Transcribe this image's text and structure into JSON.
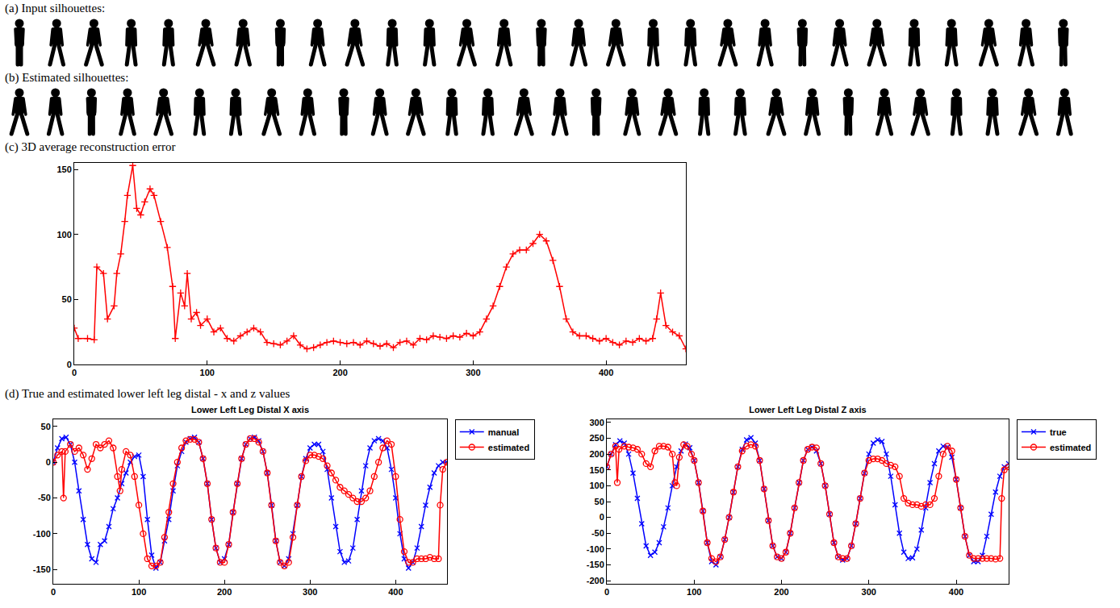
{
  "labels": {
    "a": "(a) Input silhouettes:",
    "b": "(b) Estimated silhouettes:",
    "c": "(c) 3D average reconstruction error",
    "d": "(d) True and estimated lower left leg distal - x and z values"
  },
  "silhouette_counts": {
    "a": 29,
    "b": 30
  },
  "chart_data": [
    {
      "type": "line",
      "xlim": [
        0,
        460
      ],
      "xticks": [
        0,
        100,
        200,
        300,
        400
      ],
      "ylim": [
        0,
        155
      ],
      "yticks": [
        0,
        50,
        100,
        150
      ],
      "grid": false,
      "series": [
        {
          "color": "#ff0000",
          "marker": "plus",
          "x": [
            0,
            3,
            10,
            15,
            17,
            22,
            25,
            30,
            32,
            35,
            38,
            40,
            44,
            47,
            50,
            53,
            57,
            60,
            65,
            70,
            74,
            76,
            80,
            83,
            85,
            88,
            92,
            95,
            100,
            105,
            110,
            115,
            120,
            125,
            130,
            135,
            140,
            145,
            150,
            155,
            160,
            165,
            170,
            175,
            180,
            185,
            190,
            195,
            200,
            205,
            210,
            215,
            220,
            225,
            230,
            235,
            240,
            245,
            250,
            255,
            260,
            265,
            270,
            275,
            280,
            285,
            290,
            295,
            300,
            305,
            310,
            315,
            320,
            325,
            330,
            335,
            340,
            345,
            350,
            355,
            360,
            365,
            370,
            375,
            380,
            385,
            390,
            395,
            400,
            405,
            410,
            415,
            420,
            425,
            430,
            435,
            438,
            441,
            445,
            450,
            455,
            460
          ],
          "values": [
            28,
            20,
            20,
            19,
            75,
            70,
            35,
            45,
            70,
            85,
            110,
            130,
            153,
            120,
            115,
            125,
            135,
            130,
            110,
            90,
            60,
            20,
            55,
            45,
            70,
            35,
            40,
            30,
            35,
            25,
            28,
            20,
            18,
            22,
            25,
            28,
            25,
            17,
            16,
            15,
            18,
            22,
            15,
            12,
            13,
            15,
            17,
            18,
            17,
            16,
            17,
            15,
            18,
            16,
            14,
            16,
            13,
            17,
            18,
            15,
            20,
            19,
            22,
            21,
            20,
            22,
            21,
            24,
            22,
            25,
            35,
            45,
            60,
            75,
            85,
            88,
            88,
            93,
            100,
            95,
            80,
            60,
            35,
            25,
            22,
            22,
            20,
            18,
            20,
            17,
            15,
            18,
            17,
            20,
            18,
            20,
            35,
            55,
            30,
            25,
            22,
            12
          ]
        }
      ]
    },
    {
      "type": "line",
      "title": "Lower Left Leg Distal X axis",
      "xlim": [
        0,
        460
      ],
      "xticks": [
        0,
        100,
        200,
        300,
        400
      ],
      "ylim": [
        -170,
        60
      ],
      "yticks": [
        -150,
        -100,
        -50,
        0,
        50
      ],
      "grid": false,
      "legend": "right",
      "series": [
        {
          "name": "manual",
          "color": "#0000ff",
          "marker": "x",
          "x": [
            0,
            5,
            10,
            15,
            20,
            25,
            30,
            35,
            40,
            45,
            50,
            55,
            60,
            65,
            70,
            75,
            80,
            85,
            90,
            95,
            100,
            105,
            110,
            115,
            120,
            125,
            130,
            135,
            140,
            145,
            150,
            155,
            160,
            165,
            170,
            175,
            180,
            185,
            190,
            195,
            200,
            205,
            210,
            215,
            220,
            225,
            230,
            235,
            240,
            245,
            250,
            255,
            260,
            265,
            270,
            275,
            280,
            285,
            290,
            295,
            300,
            305,
            310,
            315,
            320,
            325,
            330,
            335,
            340,
            345,
            350,
            355,
            360,
            365,
            370,
            375,
            380,
            385,
            390,
            395,
            400,
            405,
            410,
            415,
            420,
            425,
            430,
            435,
            440,
            445,
            450,
            455,
            460
          ],
          "values": [
            0,
            20,
            33,
            35,
            25,
            0,
            -40,
            -80,
            -115,
            -135,
            -140,
            -115,
            -110,
            -90,
            -65,
            -50,
            -30,
            -15,
            0,
            8,
            10,
            -20,
            -80,
            -130,
            -148,
            -140,
            -110,
            -80,
            -40,
            -5,
            15,
            28,
            33,
            35,
            28,
            5,
            -30,
            -80,
            -120,
            -140,
            -135,
            -115,
            -70,
            -30,
            5,
            25,
            33,
            35,
            30,
            15,
            -15,
            -60,
            -110,
            -140,
            -145,
            -135,
            -100,
            -60,
            -20,
            5,
            20,
            25,
            25,
            15,
            -10,
            -50,
            -90,
            -125,
            -140,
            -138,
            -120,
            -80,
            -40,
            -5,
            20,
            30,
            33,
            30,
            20,
            -10,
            -50,
            -100,
            -135,
            -148,
            -140,
            -120,
            -90,
            -60,
            -35,
            -15,
            -5,
            0,
            0
          ]
        },
        {
          "name": "estimated",
          "color": "#ff0000",
          "marker": "circle",
          "x": [
            0,
            5,
            10,
            12,
            14,
            20,
            25,
            30,
            35,
            40,
            45,
            50,
            55,
            60,
            65,
            70,
            75,
            78,
            80,
            85,
            90,
            95,
            100,
            105,
            110,
            115,
            120,
            125,
            130,
            135,
            140,
            145,
            150,
            155,
            160,
            165,
            170,
            175,
            180,
            185,
            190,
            195,
            200,
            205,
            210,
            215,
            220,
            225,
            230,
            235,
            240,
            245,
            250,
            255,
            260,
            265,
            270,
            275,
            280,
            285,
            290,
            295,
            300,
            305,
            310,
            315,
            320,
            325,
            330,
            335,
            340,
            345,
            350,
            355,
            360,
            365,
            370,
            375,
            380,
            385,
            390,
            395,
            400,
            405,
            410,
            415,
            420,
            425,
            430,
            435,
            440,
            445,
            450,
            452,
            455,
            460
          ],
          "values": [
            0,
            10,
            15,
            -50,
            15,
            25,
            15,
            20,
            10,
            -10,
            5,
            25,
            20,
            25,
            30,
            20,
            -20,
            -40,
            -10,
            15,
            10,
            -20,
            -60,
            -100,
            -135,
            -145,
            -145,
            -140,
            -105,
            -70,
            -30,
            0,
            20,
            30,
            32,
            32,
            28,
            5,
            -30,
            -80,
            -120,
            -140,
            -140,
            -115,
            -70,
            -30,
            5,
            25,
            33,
            33,
            28,
            15,
            -15,
            -60,
            -110,
            -140,
            -145,
            -140,
            -105,
            -60,
            -20,
            2,
            10,
            10,
            8,
            5,
            -5,
            -15,
            -25,
            -35,
            -40,
            -45,
            -50,
            -55,
            -55,
            -50,
            -40,
            -20,
            0,
            20,
            30,
            25,
            -20,
            -80,
            -125,
            -140,
            -140,
            -135,
            -135,
            -135,
            -133,
            -135,
            -135,
            -60,
            -10,
            0
          ]
        }
      ]
    },
    {
      "type": "line",
      "title": "Lower Left Leg Distal Z axis",
      "xlim": [
        0,
        460
      ],
      "xticks": [
        0,
        100,
        200,
        300,
        400
      ],
      "ylim": [
        -210,
        310
      ],
      "yticks": [
        -200,
        -150,
        -100,
        -50,
        0,
        50,
        100,
        150,
        200,
        250,
        300
      ],
      "grid": false,
      "legend": "right",
      "series": [
        {
          "name": "true",
          "color": "#0000ff",
          "marker": "x",
          "x": [
            0,
            5,
            10,
            15,
            20,
            25,
            30,
            35,
            40,
            45,
            50,
            55,
            60,
            65,
            70,
            75,
            80,
            85,
            90,
            95,
            100,
            105,
            110,
            115,
            120,
            125,
            130,
            135,
            140,
            145,
            150,
            155,
            160,
            165,
            170,
            175,
            180,
            185,
            190,
            195,
            200,
            205,
            210,
            215,
            220,
            225,
            230,
            235,
            240,
            245,
            250,
            255,
            260,
            265,
            270,
            275,
            280,
            285,
            290,
            295,
            300,
            305,
            310,
            315,
            320,
            325,
            330,
            335,
            340,
            345,
            350,
            355,
            360,
            365,
            370,
            375,
            380,
            385,
            390,
            395,
            400,
            405,
            410,
            415,
            420,
            425,
            430,
            435,
            440,
            445,
            450,
            455,
            460
          ],
          "values": [
            160,
            200,
            230,
            242,
            235,
            200,
            140,
            60,
            -20,
            -90,
            -120,
            -110,
            -80,
            -30,
            30,
            100,
            160,
            210,
            232,
            220,
            180,
            110,
            20,
            -80,
            -140,
            -150,
            -125,
            -70,
            0,
            80,
            160,
            215,
            245,
            252,
            235,
            180,
            90,
            -10,
            -90,
            -125,
            -130,
            -110,
            -50,
            30,
            110,
            180,
            215,
            222,
            210,
            170,
            100,
            10,
            -80,
            -125,
            -135,
            -130,
            -90,
            -20,
            60,
            140,
            200,
            235,
            245,
            240,
            200,
            130,
            40,
            -50,
            -110,
            -130,
            -128,
            -100,
            -40,
            30,
            110,
            170,
            210,
            225,
            222,
            190,
            120,
            30,
            -60,
            -120,
            -140,
            -140,
            -120,
            -60,
            10,
            80,
            130,
            160,
            170
          ]
        },
        {
          "name": "estimated",
          "color": "#ff0000",
          "marker": "circle",
          "x": [
            0,
            5,
            10,
            12,
            14,
            20,
            25,
            30,
            35,
            40,
            45,
            50,
            55,
            60,
            65,
            70,
            75,
            78,
            80,
            83,
            88,
            92,
            97,
            100,
            105,
            110,
            115,
            120,
            125,
            130,
            135,
            140,
            145,
            150,
            155,
            160,
            165,
            170,
            175,
            180,
            185,
            190,
            195,
            200,
            205,
            210,
            215,
            220,
            225,
            230,
            235,
            240,
            245,
            250,
            255,
            260,
            265,
            270,
            275,
            280,
            285,
            290,
            295,
            300,
            305,
            310,
            315,
            320,
            325,
            330,
            335,
            340,
            345,
            350,
            355,
            360,
            365,
            370,
            375,
            380,
            385,
            390,
            395,
            400,
            405,
            410,
            415,
            420,
            425,
            430,
            435,
            440,
            445,
            450,
            452,
            455,
            460
          ],
          "values": [
            160,
            200,
            225,
            110,
            215,
            225,
            222,
            220,
            215,
            200,
            170,
            160,
            210,
            225,
            225,
            222,
            200,
            110,
            100,
            190,
            230,
            225,
            200,
            180,
            110,
            20,
            -80,
            -130,
            -140,
            -125,
            -70,
            0,
            80,
            160,
            210,
            225,
            230,
            225,
            180,
            90,
            -10,
            -90,
            -125,
            -130,
            -110,
            -50,
            30,
            110,
            180,
            215,
            222,
            220,
            170,
            100,
            10,
            -80,
            -125,
            -130,
            -130,
            -90,
            -20,
            60,
            140,
            180,
            185,
            185,
            180,
            170,
            165,
            160,
            130,
            60,
            45,
            40,
            40,
            35,
            40,
            40,
            60,
            130,
            200,
            225,
            210,
            120,
            30,
            -60,
            -120,
            -130,
            -130,
            -130,
            -130,
            -130,
            -132,
            -130,
            60,
            150,
            160
          ]
        }
      ]
    }
  ]
}
